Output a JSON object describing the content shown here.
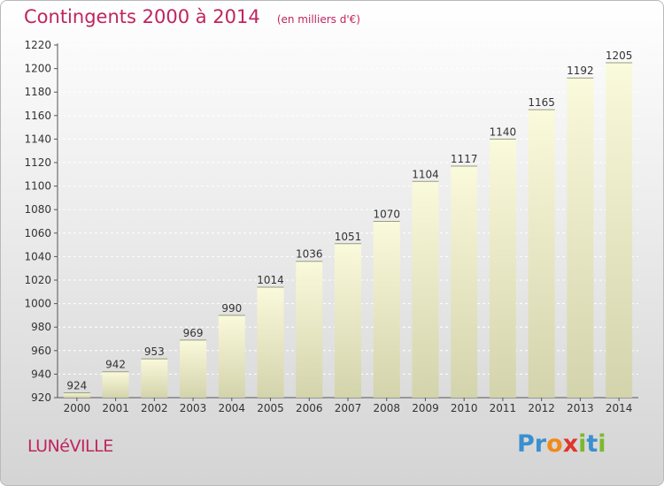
{
  "chart_data": {
    "type": "bar",
    "title": "Contingents 2000 à 2014",
    "subtitle": "(en milliers d'€)",
    "categories": [
      "2000",
      "2001",
      "2002",
      "2003",
      "2004",
      "2005",
      "2006",
      "2007",
      "2008",
      "2009",
      "2010",
      "2011",
      "2012",
      "2013",
      "2014"
    ],
    "values": [
      924,
      942,
      953,
      969,
      990,
      1014,
      1036,
      1051,
      1070,
      1104,
      1117,
      1140,
      1165,
      1192,
      1205
    ],
    "yticks": [
      920,
      940,
      960,
      980,
      1000,
      1020,
      1040,
      1060,
      1080,
      1100,
      1120,
      1140,
      1160,
      1180,
      1200,
      1220
    ],
    "ylim": [
      920,
      1220
    ],
    "grid": true,
    "colors": {
      "bar_top": "#fafadc",
      "bar_bottom": "#d3d3ac",
      "title": "#c0245e"
    }
  },
  "footer": {
    "town": "LUNéVILLE",
    "logo": {
      "letters": [
        "P",
        "r",
        "o",
        "x",
        "i",
        "t",
        "i"
      ],
      "colors": [
        "#3a8fd0",
        "#3a8fd0",
        "#f08a1c",
        "#e0352b",
        "#7cb82f",
        "#3a8fd0",
        "#7cb82f"
      ]
    }
  }
}
